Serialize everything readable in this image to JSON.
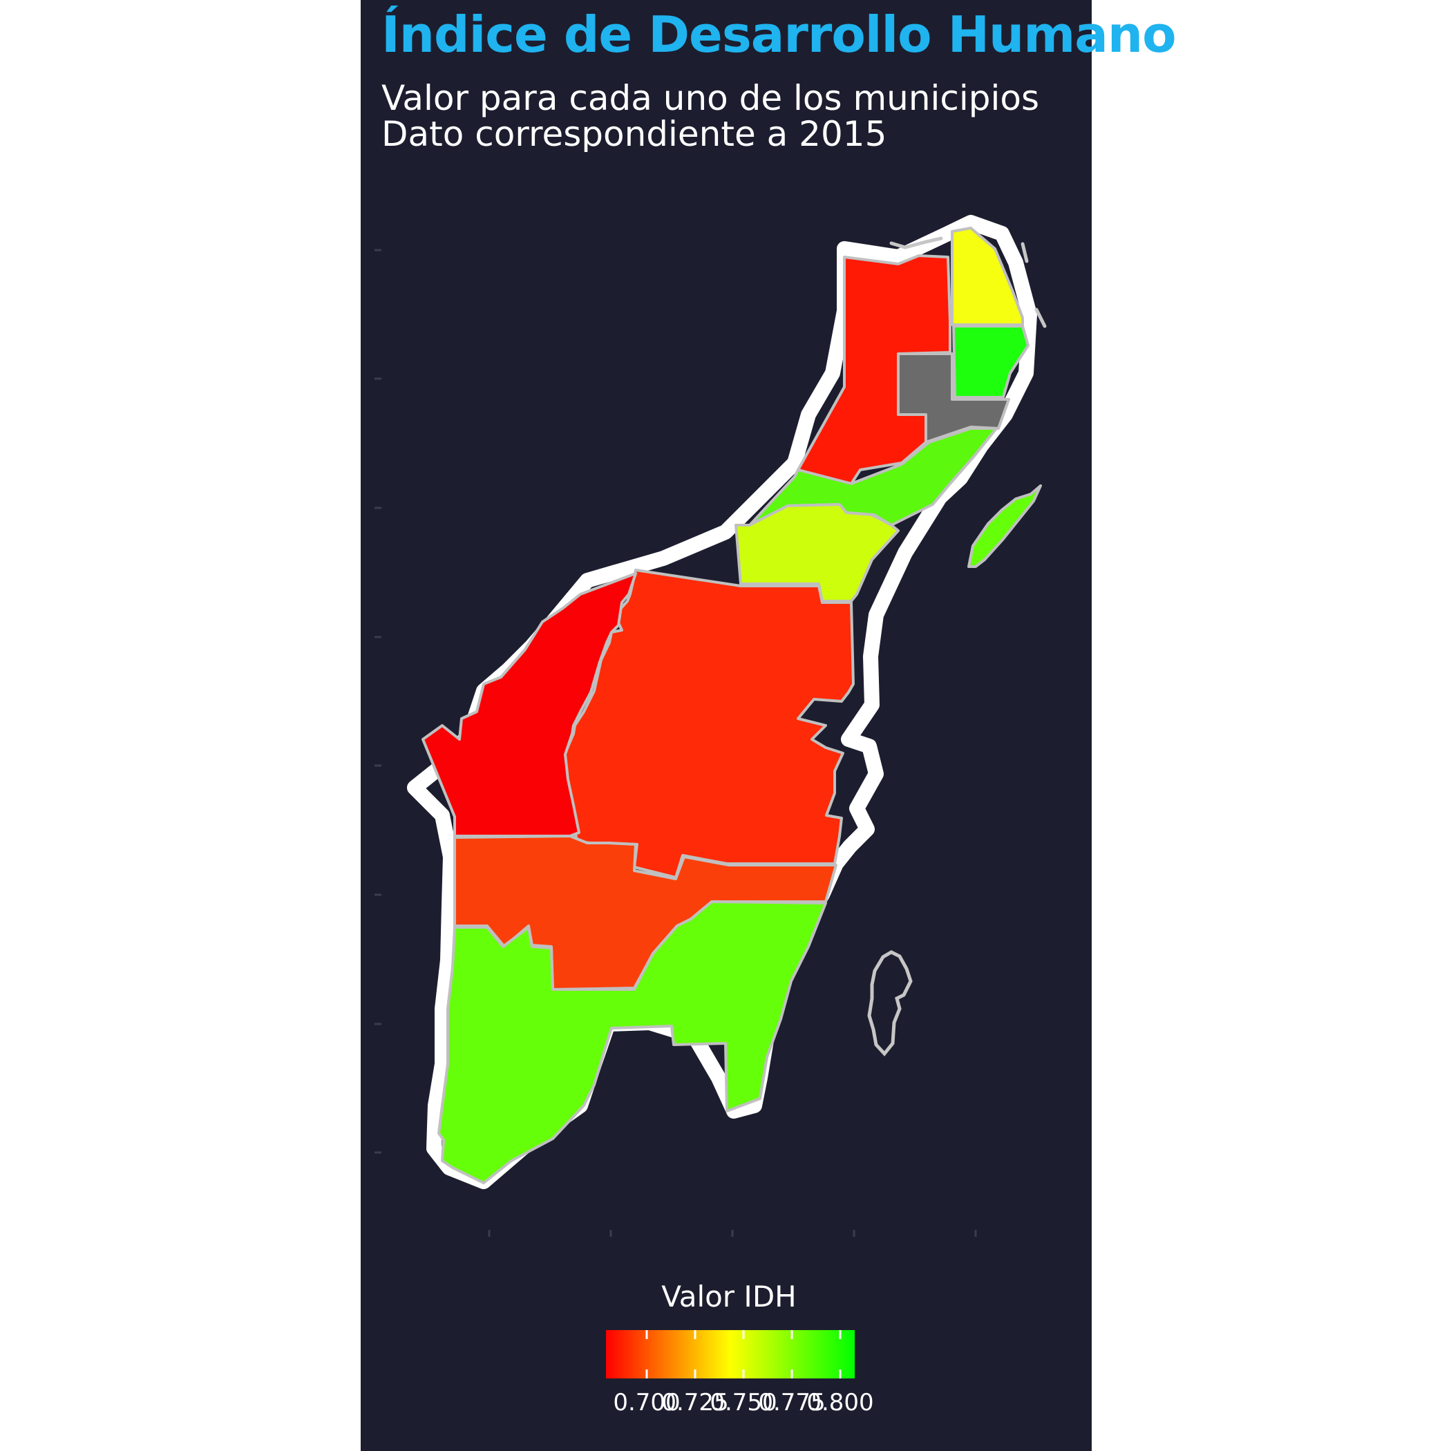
{
  "title": "Índice de Desarrollo Humano",
  "subtitle_line1": "Valor para cada uno de los municipios",
  "subtitle_line2": "Dato correspondiente a 2015",
  "colors": {
    "background": "#1c1e2f",
    "title": "#1fb3ef",
    "border": "#ffffff",
    "missing": "#6b6b6b",
    "scale_low": "#ff0000",
    "scale_mid": "#ffff00",
    "scale_high": "#00ff00"
  },
  "legend": {
    "title": "Valor IDH",
    "min": 0.7,
    "max": 0.8,
    "ticks": [
      "0.700",
      "0.725",
      "0.750",
      "0.775",
      "0.800"
    ]
  },
  "regions": [
    {
      "color": "#ff1a06",
      "value": 0.705
    },
    {
      "color": "#f5ff0f",
      "value": 0.748
    },
    {
      "color": "#1eff0e",
      "value": 0.792
    },
    {
      "color": "#6b6b6b",
      "value": null
    },
    {
      "color": "#5cf80e",
      "value": 0.783
    },
    {
      "color": "#cdff0c",
      "value": 0.76
    },
    {
      "color": "#ff2a08",
      "value": 0.708
    },
    {
      "color": "#fa0106",
      "value": 0.7
    },
    {
      "color": "#fb3f0a",
      "value": 0.712
    },
    {
      "color": "#66ff0a",
      "value": 0.782
    },
    {
      "color": "#66ff0a",
      "value": 0.782
    }
  ]
}
